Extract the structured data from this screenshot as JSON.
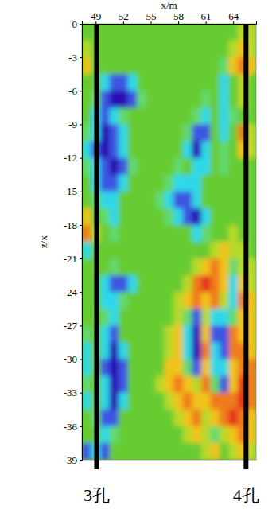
{
  "chart_data": {
    "type": "heatmap",
    "x_label": "x/m",
    "y_label": "z/x",
    "x": [
      48,
      49,
      50,
      51,
      52,
      53,
      54,
      55,
      56,
      57,
      58,
      59,
      60,
      61,
      62,
      63,
      64,
      65,
      66
    ],
    "y": [
      -0.75,
      -2.25,
      -3.75,
      -5.25,
      -6.75,
      -8.25,
      -9.75,
      -11.25,
      -12.75,
      -14.25,
      -15.75,
      -17.25,
      -18.75,
      -20.25,
      -21.75,
      -23.25,
      -24.75,
      -26.25,
      -27.75,
      -29.25,
      -30.75,
      -32.25,
      -33.75,
      -35.25,
      -36.75,
      -38.25
    ],
    "values": [
      [
        5,
        5,
        5,
        5,
        5,
        5,
        5,
        5,
        5,
        5,
        5,
        5,
        5,
        5,
        5,
        5,
        5,
        6,
        6
      ],
      [
        6,
        5,
        5,
        5,
        5,
        5,
        5,
        5,
        5,
        5,
        5,
        5,
        5,
        5,
        5,
        5,
        6,
        7,
        6
      ],
      [
        7,
        5,
        5,
        5,
        5,
        5,
        5,
        5,
        5,
        5,
        5,
        5,
        5,
        5,
        5,
        4,
        7,
        8,
        7
      ],
      [
        5,
        5,
        3,
        2,
        2,
        3,
        5,
        5,
        5,
        5,
        5,
        5,
        5,
        5,
        5,
        3,
        5,
        6,
        5
      ],
      [
        5,
        4,
        2,
        1,
        1,
        2,
        4,
        5,
        5,
        5,
        5,
        5,
        5,
        4,
        5,
        3,
        5,
        6,
        5
      ],
      [
        5,
        3,
        2,
        3,
        4,
        5,
        5,
        5,
        5,
        5,
        5,
        5,
        4,
        3,
        5,
        3,
        4,
        5,
        5
      ],
      [
        4,
        3,
        1,
        2,
        3,
        5,
        5,
        5,
        5,
        5,
        5,
        4,
        2,
        2,
        5,
        3,
        5,
        8,
        6
      ],
      [
        3,
        2,
        1,
        2,
        3,
        5,
        5,
        5,
        5,
        5,
        5,
        3,
        1,
        3,
        5,
        4,
        5,
        7,
        6
      ],
      [
        4,
        3,
        2,
        1,
        2,
        4,
        5,
        5,
        5,
        5,
        4,
        5,
        3,
        3,
        5,
        4,
        5,
        5,
        5
      ],
      [
        5,
        3,
        2,
        2,
        3,
        5,
        5,
        5,
        5,
        4,
        3,
        3,
        3,
        5,
        5,
        5,
        5,
        5,
        5
      ],
      [
        5,
        4,
        3,
        3,
        5,
        5,
        5,
        5,
        4,
        3,
        2,
        2,
        3,
        5,
        5,
        5,
        5,
        5,
        5
      ],
      [
        7,
        5,
        4,
        3,
        5,
        5,
        5,
        5,
        5,
        4,
        3,
        2,
        1,
        3,
        5,
        5,
        5,
        5,
        5
      ],
      [
        8,
        6,
        5,
        4,
        5,
        5,
        5,
        5,
        5,
        5,
        5,
        5,
        3,
        4,
        5,
        5,
        6,
        5,
        5
      ],
      [
        3,
        5,
        5,
        5,
        5,
        5,
        5,
        5,
        5,
        5,
        5,
        5,
        5,
        5,
        6,
        7,
        6,
        6,
        5
      ],
      [
        5,
        5,
        5,
        4,
        5,
        5,
        5,
        5,
        5,
        5,
        5,
        5,
        6,
        7,
        8,
        7,
        4,
        6,
        6
      ],
      [
        5,
        5,
        3,
        2,
        2,
        3,
        5,
        5,
        5,
        5,
        5,
        6,
        8,
        9,
        8,
        7,
        3,
        7,
        6
      ],
      [
        5,
        5,
        3,
        3,
        4,
        5,
        5,
        5,
        5,
        5,
        6,
        7,
        8,
        7,
        8,
        6,
        3,
        8,
        7
      ],
      [
        5,
        5,
        4,
        3,
        5,
        5,
        5,
        5,
        5,
        5,
        6,
        4,
        2,
        6,
        3,
        3,
        4,
        7,
        7
      ],
      [
        4,
        5,
        3,
        2,
        5,
        5,
        5,
        5,
        5,
        6,
        7,
        3,
        1,
        7,
        2,
        2,
        8,
        7,
        7
      ],
      [
        3,
        5,
        3,
        1,
        3,
        5,
        5,
        5,
        5,
        6,
        7,
        3,
        1,
        8,
        3,
        2,
        8,
        8,
        7
      ],
      [
        3,
        5,
        2,
        1,
        2,
        5,
        5,
        5,
        5,
        7,
        7,
        4,
        2,
        7,
        3,
        3,
        7,
        8,
        8
      ],
      [
        4,
        5,
        3,
        1,
        2,
        5,
        5,
        5,
        6,
        7,
        8,
        7,
        6,
        8,
        4,
        2,
        7,
        9,
        8
      ],
      [
        3,
        5,
        3,
        1,
        3,
        5,
        5,
        5,
        5,
        6,
        7,
        8,
        7,
        7,
        8,
        8,
        8,
        9,
        8
      ],
      [
        5,
        4,
        2,
        2,
        5,
        5,
        5,
        5,
        5,
        5,
        6,
        7,
        8,
        6,
        7,
        8,
        9,
        8,
        7
      ],
      [
        5,
        5,
        3,
        4,
        5,
        5,
        5,
        5,
        5,
        5,
        5,
        6,
        7,
        6,
        4,
        6,
        7,
        8,
        7
      ],
      [
        2,
        3,
        2,
        5,
        5,
        5,
        5,
        5,
        5,
        5,
        5,
        5,
        5,
        6,
        7,
        5,
        6,
        7,
        6
      ]
    ],
    "xlim": [
      47.5,
      66.5
    ],
    "ylim": [
      -39,
      0
    ],
    "xticks": [
      49,
      52,
      55,
      58,
      61,
      64
    ],
    "yticks": [
      0,
      -3,
      -6,
      -9,
      -12,
      -15,
      -18,
      -21,
      -24,
      -27,
      -30,
      -33,
      -36,
      -39
    ],
    "zlim": [
      1,
      9
    ],
    "annotations": [
      {
        "label": "3孔",
        "x": 49.1
      },
      {
        "label": "4孔",
        "x": 65.4
      }
    ]
  }
}
